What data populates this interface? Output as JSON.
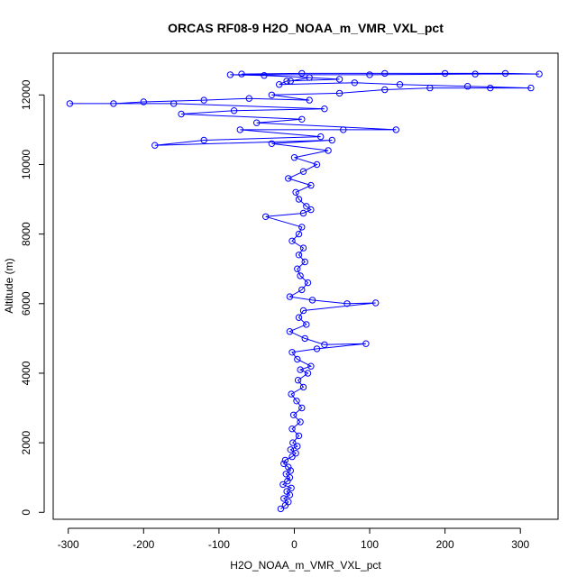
{
  "chart_data": {
    "type": "scatter",
    "title": "ORCAS RF08-9 H2O_NOAA_m_VMR_VXL_pct",
    "xlabel": "H2O_NOAA_m_VMR_VXL_pct",
    "ylabel": "Altitude (m)",
    "xlim": [
      -320,
      350
    ],
    "ylim": [
      -200,
      13200
    ],
    "x_ticks": [
      -300,
      -200,
      -100,
      0,
      100,
      200,
      300
    ],
    "x_tick_labels": [
      "-300",
      "-200",
      "-100",
      "0",
      "100",
      "200",
      "300"
    ],
    "y_ticks": [
      0,
      2000,
      4000,
      6000,
      8000,
      10000,
      12000
    ],
    "y_tick_labels": [
      "0",
      "2000",
      "4000",
      "6000",
      "8000",
      "10000",
      "12000"
    ],
    "marker": "open-circle",
    "connected": true,
    "grid": false,
    "legend": "none",
    "series_color": "#0000ff",
    "series": [
      {
        "points": [
          [
            -18,
            100
          ],
          [
            -12,
            200
          ],
          [
            -8,
            300
          ],
          [
            -14,
            400
          ],
          [
            -6,
            500
          ],
          [
            -10,
            600
          ],
          [
            -4,
            700
          ],
          [
            -15,
            800
          ],
          [
            -9,
            900
          ],
          [
            -6,
            1000
          ],
          [
            -11,
            1100
          ],
          [
            -5,
            1200
          ],
          [
            -8,
            1300
          ],
          [
            -14,
            1400
          ],
          [
            -12,
            1500
          ],
          [
            -3,
            1600
          ],
          [
            2,
            1700
          ],
          [
            -5,
            1800
          ],
          [
            4,
            1900
          ],
          [
            -2,
            2000
          ],
          [
            6,
            2200
          ],
          [
            -3,
            2400
          ],
          [
            8,
            2600
          ],
          [
            -1,
            2800
          ],
          [
            10,
            3000
          ],
          [
            3,
            3200
          ],
          [
            -4,
            3400
          ],
          [
            12,
            3600
          ],
          [
            5,
            3800
          ],
          [
            18,
            4000
          ],
          [
            8,
            4100
          ],
          [
            22,
            4200
          ],
          [
            4,
            4400
          ],
          [
            -3,
            4600
          ],
          [
            30,
            4700
          ],
          [
            95,
            4850
          ],
          [
            40,
            4820
          ],
          [
            14,
            5000
          ],
          [
            -6,
            5200
          ],
          [
            16,
            5400
          ],
          [
            6,
            5600
          ],
          [
            12,
            5800
          ],
          [
            108,
            6020
          ],
          [
            70,
            6000
          ],
          [
            24,
            6100
          ],
          [
            -6,
            6200
          ],
          [
            10,
            6400
          ],
          [
            18,
            6600
          ],
          [
            8,
            6800
          ],
          [
            4,
            7000
          ],
          [
            14,
            7200
          ],
          [
            6,
            7400
          ],
          [
            12,
            7600
          ],
          [
            -3,
            7800
          ],
          [
            6,
            8000
          ],
          [
            10,
            8200
          ],
          [
            -38,
            8500
          ],
          [
            12,
            8600
          ],
          [
            22,
            8700
          ],
          [
            16,
            8800
          ],
          [
            6,
            9000
          ],
          [
            2,
            9200
          ],
          [
            22,
            9400
          ],
          [
            -8,
            9600
          ],
          [
            12,
            9800
          ],
          [
            30,
            10000
          ],
          [
            0,
            10200
          ],
          [
            45,
            10400
          ],
          [
            -30,
            10600
          ],
          [
            50,
            10700
          ],
          [
            -185,
            10550
          ],
          [
            -120,
            10700
          ],
          [
            35,
            10800
          ],
          [
            -72,
            11000
          ],
          [
            65,
            11000
          ],
          [
            135,
            11000
          ],
          [
            -50,
            11200
          ],
          [
            10,
            11300
          ],
          [
            -150,
            11450
          ],
          [
            -80,
            11550
          ],
          [
            40,
            11600
          ],
          [
            -160,
            11750
          ],
          [
            -298,
            11750
          ],
          [
            -240,
            11750
          ],
          [
            -200,
            11800
          ],
          [
            -120,
            11850
          ],
          [
            -60,
            11900
          ],
          [
            20,
            11850
          ],
          [
            -30,
            12000
          ],
          [
            60,
            12050
          ],
          [
            120,
            12150
          ],
          [
            180,
            12200
          ],
          [
            260,
            12200
          ],
          [
            314,
            12200
          ],
          [
            230,
            12250
          ],
          [
            140,
            12300
          ],
          [
            80,
            12350
          ],
          [
            -20,
            12300
          ],
          [
            -10,
            12400
          ],
          [
            60,
            12450
          ],
          [
            -70,
            12600
          ],
          [
            10,
            12620
          ],
          [
            120,
            12620
          ],
          [
            200,
            12620
          ],
          [
            280,
            12620
          ],
          [
            325,
            12600
          ],
          [
            240,
            12600
          ],
          [
            100,
            12580
          ],
          [
            -85,
            12580
          ],
          [
            -40,
            12560
          ],
          [
            20,
            12500
          ],
          [
            -5,
            12400
          ]
        ]
      }
    ]
  }
}
